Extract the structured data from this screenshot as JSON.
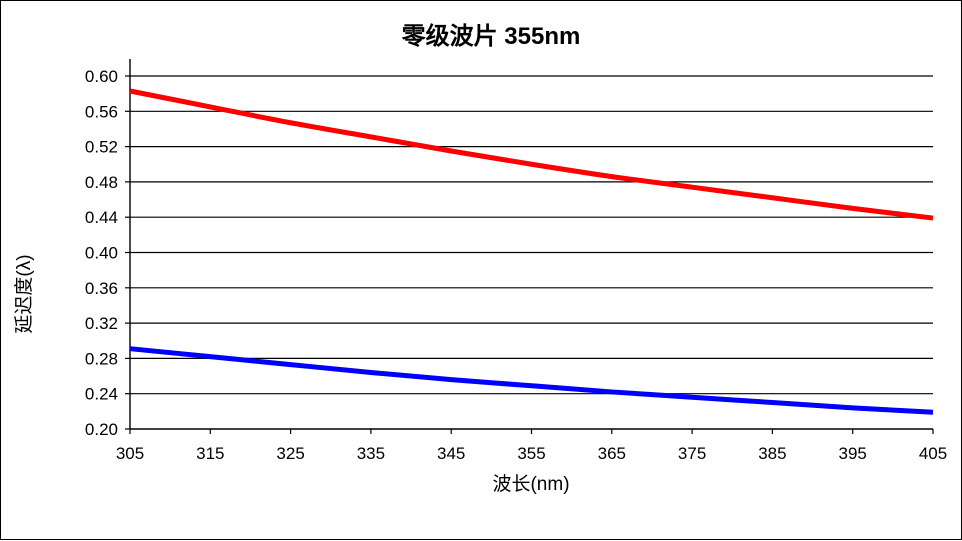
{
  "chart_data": {
    "type": "line",
    "title": "零级波片 355nm",
    "xlabel": "波长(nm)",
    "ylabel": "延迟度(λ)",
    "xlim": [
      305,
      405
    ],
    "ylim": [
      0.2,
      0.6
    ],
    "x_ticks": [
      "305",
      "315",
      "325",
      "335",
      "345",
      "355",
      "365",
      "375",
      "385",
      "395",
      "405"
    ],
    "y_ticks": [
      "0.20",
      "0.24",
      "0.28",
      "0.32",
      "0.36",
      "0.40",
      "0.44",
      "0.48",
      "0.52",
      "0.56",
      "0.60"
    ],
    "grid": "horizontal",
    "series": [
      {
        "color": "#ff0000",
        "x": [
          305,
          315,
          325,
          335,
          345,
          355,
          365,
          375,
          385,
          395,
          405
        ],
        "y": [
          0.583,
          0.565,
          0.547,
          0.531,
          0.515,
          0.5,
          0.486,
          0.474,
          0.462,
          0.45,
          0.439
        ]
      },
      {
        "color": "#0000ff",
        "x": [
          305,
          315,
          325,
          335,
          345,
          355,
          365,
          375,
          385,
          395,
          405
        ],
        "y": [
          0.291,
          0.282,
          0.273,
          0.264,
          0.256,
          0.249,
          0.242,
          0.236,
          0.23,
          0.224,
          0.219
        ]
      }
    ]
  }
}
